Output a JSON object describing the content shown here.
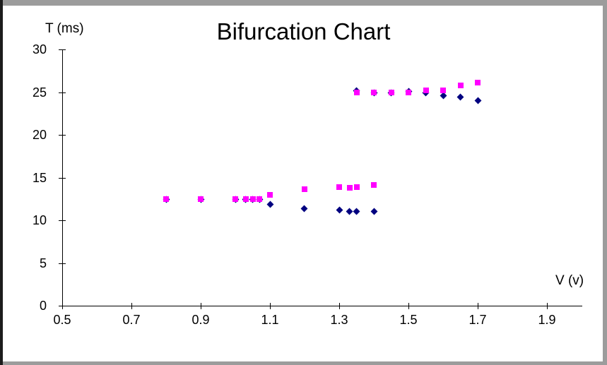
{
  "frame": {
    "background": "#ffffff",
    "border_gray": "#9c9c9c",
    "border_dark": "#1c1c1c"
  },
  "chart_data": {
    "type": "scatter",
    "title": "Bifurcation Chart",
    "xlabel": "V (v)",
    "ylabel": "T (ms)",
    "xlim": [
      0.5,
      2.0
    ],
    "ylim": [
      0,
      30
    ],
    "x_ticks": [
      "0.5",
      "0.7",
      "0.9",
      "1.1",
      "1.3",
      "1.5",
      "1.7",
      "1.9"
    ],
    "y_ticks": [
      "0",
      "5",
      "10",
      "15",
      "20",
      "25",
      "30"
    ],
    "grid": false,
    "legend_position": "none",
    "series": [
      {
        "name": "diamond-series",
        "marker": "diamond",
        "color": "#000080",
        "points": [
          [
            0.8,
            12.4
          ],
          [
            0.9,
            12.4
          ],
          [
            1.0,
            12.4
          ],
          [
            1.03,
            12.4
          ],
          [
            1.05,
            12.4
          ],
          [
            1.07,
            12.4
          ],
          [
            1.1,
            11.9
          ],
          [
            1.2,
            11.4
          ],
          [
            1.3,
            11.2
          ],
          [
            1.33,
            11.0
          ],
          [
            1.35,
            11.0
          ],
          [
            1.4,
            11.0
          ],
          [
            1.35,
            25.2
          ],
          [
            1.4,
            24.9
          ],
          [
            1.45,
            24.9
          ],
          [
            1.5,
            25.1
          ],
          [
            1.55,
            24.9
          ],
          [
            1.6,
            24.6
          ],
          [
            1.65,
            24.4
          ],
          [
            1.7,
            24.0
          ]
        ]
      },
      {
        "name": "square-series",
        "marker": "square",
        "color": "#ff00ff",
        "points": [
          [
            0.8,
            12.5
          ],
          [
            0.9,
            12.5
          ],
          [
            1.0,
            12.5
          ],
          [
            1.03,
            12.5
          ],
          [
            1.05,
            12.5
          ],
          [
            1.07,
            12.5
          ],
          [
            1.1,
            13.0
          ],
          [
            1.2,
            13.6
          ],
          [
            1.3,
            13.9
          ],
          [
            1.33,
            13.8
          ],
          [
            1.35,
            13.9
          ],
          [
            1.4,
            14.1
          ],
          [
            1.35,
            25.0
          ],
          [
            1.4,
            25.0
          ],
          [
            1.45,
            25.0
          ],
          [
            1.5,
            25.0
          ],
          [
            1.55,
            25.2
          ],
          [
            1.6,
            25.2
          ],
          [
            1.65,
            25.8
          ],
          [
            1.7,
            26.1
          ]
        ]
      }
    ]
  }
}
